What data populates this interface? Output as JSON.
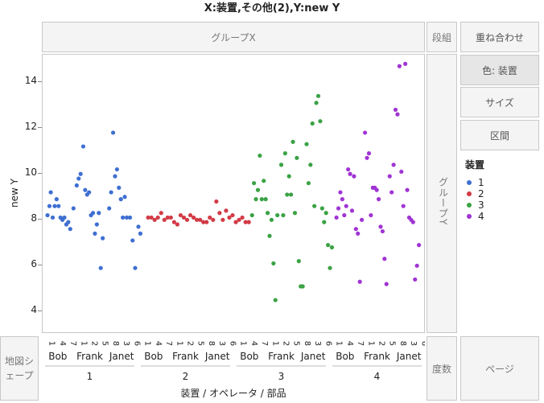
{
  "title": "X:装置,その他(2),Y:new Y",
  "drop_zones": {
    "group_x": "グループX",
    "wrap": "段組",
    "overlay": "重ね合わせ",
    "color": "色: 装置",
    "size": "サイズ",
    "interval": "区間",
    "group_y": "グループY",
    "map_shape": "地図シェープ",
    "freq": "度数",
    "page": "ページ"
  },
  "legend": {
    "title": "装置",
    "items": [
      {
        "label": "1",
        "color": "#3f6fd1"
      },
      {
        "label": "2",
        "color": "#d23b46"
      },
      {
        "label": "3",
        "color": "#3aa244"
      },
      {
        "label": "4",
        "color": "#a034d4"
      }
    ]
  },
  "x_axis_label": "装置 / オペレータ / 部品",
  "y_axis_label": "new Y",
  "chart_data": {
    "type": "scatter",
    "y_ticks": [
      4,
      6,
      8,
      10,
      12,
      14
    ],
    "ylim": [
      3.1,
      15.2
    ],
    "ylabel": "new Y",
    "xlabel": "装置 / オペレータ / 部品",
    "x_levels": {
      "level1_devices": [
        "1",
        "2",
        "3",
        "4"
      ],
      "level2_operators": [
        "Bob",
        "Frank",
        "Janet"
      ],
      "level3_parts": [
        "1",
        "4",
        "7",
        "10",
        "2",
        "5",
        "8",
        "3",
        "6",
        "9"
      ],
      "part_tick_labels": [
        "1",
        "4",
        "7",
        "1",
        "2",
        "5",
        "8",
        "3",
        "6"
      ]
    },
    "series": [
      {
        "name": "1",
        "color": "#3f6fd1",
        "points": [
          [
            1.5,
            8.2
          ],
          [
            1.8,
            8.6
          ],
          [
            2.0,
            9.2
          ],
          [
            2.3,
            8.1
          ],
          [
            2.6,
            8.6
          ],
          [
            2.9,
            8.9
          ],
          [
            3.2,
            8.6
          ],
          [
            3.5,
            8.1
          ],
          [
            3.8,
            8.0
          ],
          [
            4.1,
            8.1
          ],
          [
            4.4,
            7.8
          ],
          [
            4.7,
            7.9
          ],
          [
            5.0,
            7.6
          ],
          [
            5.5,
            8.5
          ],
          [
            6.0,
            9.5
          ],
          [
            6.3,
            9.8
          ],
          [
            6.6,
            10.0
          ],
          [
            7.0,
            11.2
          ],
          [
            7.3,
            9.3
          ],
          [
            7.6,
            9.1
          ],
          [
            7.9,
            9.2
          ],
          [
            8.2,
            8.2
          ],
          [
            8.5,
            8.3
          ],
          [
            8.8,
            7.4
          ],
          [
            9.1,
            7.8
          ],
          [
            9.4,
            8.3
          ],
          [
            9.7,
            5.9
          ],
          [
            10.0,
            7.2
          ],
          [
            11.0,
            8.5
          ],
          [
            11.3,
            9.2
          ],
          [
            11.6,
            11.8
          ],
          [
            11.9,
            9.9
          ],
          [
            12.2,
            10.2
          ],
          [
            12.5,
            9.4
          ],
          [
            12.8,
            8.9
          ],
          [
            13.1,
            8.1
          ],
          [
            13.4,
            9.0
          ],
          [
            13.7,
            8.1
          ],
          [
            14.2,
            8.1
          ],
          [
            14.6,
            7.1
          ],
          [
            15.0,
            5.9
          ],
          [
            15.5,
            7.7
          ],
          [
            15.8,
            7.4
          ]
        ]
      },
      {
        "name": "2",
        "color": "#d23b46",
        "points": [
          [
            17.0,
            8.1
          ],
          [
            17.5,
            8.1
          ],
          [
            18.0,
            8.0
          ],
          [
            18.5,
            8.1
          ],
          [
            19.0,
            8.3
          ],
          [
            19.5,
            8.0
          ],
          [
            20.0,
            8.1
          ],
          [
            20.5,
            8.1
          ],
          [
            21.0,
            7.9
          ],
          [
            21.5,
            7.8
          ],
          [
            22.0,
            8.2
          ],
          [
            22.5,
            8.1
          ],
          [
            23.0,
            8.0
          ],
          [
            23.5,
            8.2
          ],
          [
            24.0,
            8.1
          ],
          [
            24.5,
            8.0
          ],
          [
            25.0,
            8.0
          ],
          [
            25.5,
            7.9
          ],
          [
            26.0,
            7.9
          ],
          [
            26.5,
            8.1
          ],
          [
            27.0,
            8.0
          ],
          [
            27.5,
            8.8
          ],
          [
            28.0,
            8.3
          ],
          [
            28.5,
            8.0
          ],
          [
            29.0,
            8.4
          ],
          [
            29.5,
            8.1
          ],
          [
            30.0,
            8.2
          ],
          [
            30.5,
            7.9
          ],
          [
            31.0,
            8.0
          ],
          [
            31.5,
            8.1
          ],
          [
            32.0,
            7.9
          ],
          [
            32.5,
            7.9
          ]
        ]
      },
      {
        "name": "3",
        "color": "#3aa244",
        "points": [
          [
            33.0,
            8.2
          ],
          [
            33.3,
            9.6
          ],
          [
            33.6,
            8.9
          ],
          [
            33.9,
            9.3
          ],
          [
            34.2,
            10.8
          ],
          [
            34.5,
            8.9
          ],
          [
            34.8,
            9.7
          ],
          [
            35.1,
            8.9
          ],
          [
            35.4,
            8.3
          ],
          [
            35.7,
            7.3
          ],
          [
            36.0,
            8.0
          ],
          [
            36.3,
            6.1
          ],
          [
            36.6,
            4.5
          ],
          [
            36.9,
            8.2
          ],
          [
            37.5,
            10.4
          ],
          [
            37.8,
            8.2
          ],
          [
            38.1,
            10.9
          ],
          [
            38.4,
            9.1
          ],
          [
            38.7,
            9.9
          ],
          [
            39.0,
            9.1
          ],
          [
            39.3,
            11.4
          ],
          [
            39.6,
            8.3
          ],
          [
            39.9,
            10.7
          ],
          [
            40.2,
            6.2
          ],
          [
            40.5,
            5.1
          ],
          [
            40.8,
            5.1
          ],
          [
            41.4,
            11.3
          ],
          [
            41.7,
            9.6
          ],
          [
            42.0,
            10.4
          ],
          [
            42.3,
            12.2
          ],
          [
            42.6,
            8.6
          ],
          [
            42.9,
            13.1
          ],
          [
            43.2,
            13.4
          ],
          [
            43.5,
            12.3
          ],
          [
            43.8,
            8.5
          ],
          [
            44.1,
            7.9
          ],
          [
            44.4,
            8.3
          ],
          [
            44.7,
            6.9
          ],
          [
            45.0,
            5.9
          ],
          [
            45.3,
            6.8
          ]
        ]
      },
      {
        "name": "4",
        "color": "#a034d4",
        "points": [
          [
            46.0,
            8.1
          ],
          [
            46.3,
            8.5
          ],
          [
            46.6,
            9.2
          ],
          [
            46.9,
            8.9
          ],
          [
            47.2,
            8.2
          ],
          [
            47.5,
            8.6
          ],
          [
            47.8,
            10.2
          ],
          [
            48.1,
            10.0
          ],
          [
            48.4,
            8.4
          ],
          [
            48.7,
            9.9
          ],
          [
            49.0,
            7.6
          ],
          [
            49.3,
            7.4
          ],
          [
            49.6,
            5.3
          ],
          [
            49.9,
            8.0
          ],
          [
            50.4,
            11.8
          ],
          [
            50.7,
            10.7
          ],
          [
            51.0,
            10.9
          ],
          [
            51.3,
            8.2
          ],
          [
            51.6,
            9.4
          ],
          [
            51.9,
            9.4
          ],
          [
            52.2,
            9.3
          ],
          [
            52.5,
            8.9
          ],
          [
            52.8,
            7.7
          ],
          [
            53.1,
            7.5
          ],
          [
            53.4,
            6.3
          ],
          [
            53.7,
            5.2
          ],
          [
            54.2,
            9.9
          ],
          [
            54.5,
            9.2
          ],
          [
            54.8,
            10.4
          ],
          [
            55.1,
            12.8
          ],
          [
            55.4,
            12.6
          ],
          [
            55.7,
            14.7
          ],
          [
            56.0,
            10.1
          ],
          [
            56.3,
            8.6
          ],
          [
            56.6,
            14.8
          ],
          [
            56.9,
            9.3
          ],
          [
            57.2,
            8.1
          ],
          [
            57.5,
            8.0
          ],
          [
            57.8,
            7.9
          ],
          [
            58.1,
            5.4
          ],
          [
            58.4,
            6.0
          ],
          [
            58.7,
            6.9
          ]
        ]
      }
    ]
  }
}
